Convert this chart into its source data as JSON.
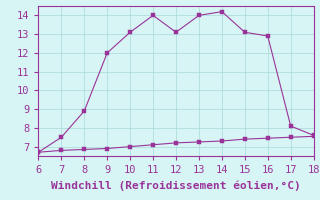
{
  "xlabel": "Windchill (Refroidissement éolien,°C)",
  "x_data": [
    6,
    7,
    8,
    9,
    10,
    11,
    12,
    13,
    14,
    15,
    16,
    17,
    18
  ],
  "y_main": [
    6.7,
    7.5,
    8.9,
    12.0,
    13.1,
    14.0,
    13.1,
    14.0,
    14.2,
    13.1,
    12.9,
    8.1,
    7.6
  ],
  "y_flat": [
    6.7,
    6.8,
    6.85,
    6.9,
    7.0,
    7.1,
    7.2,
    7.25,
    7.3,
    7.4,
    7.45,
    7.5,
    7.55
  ],
  "line_color": "#993399",
  "marker": "s",
  "marker_size": 2.5,
  "bg_color": "#d8f5f5",
  "grid_color": "#aad8d8",
  "tick_color": "#993399",
  "label_color": "#993399",
  "xlim": [
    6,
    18
  ],
  "ylim": [
    6.5,
    14.5
  ],
  "xticks": [
    6,
    7,
    8,
    9,
    10,
    11,
    12,
    13,
    14,
    15,
    16,
    17,
    18
  ],
  "yticks": [
    7,
    8,
    9,
    10,
    11,
    12,
    13,
    14
  ],
  "font_size": 7.5,
  "xlabel_font_size": 8
}
